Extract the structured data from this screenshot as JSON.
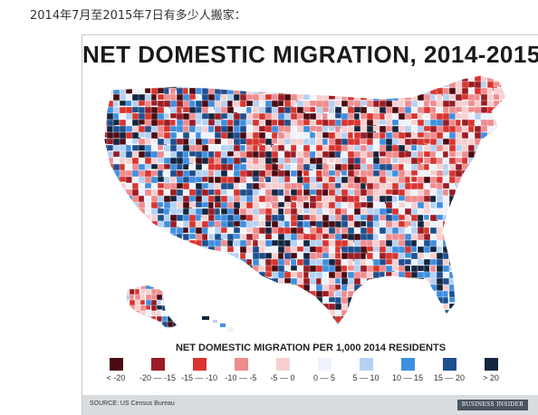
{
  "caption": "2014年7月至2015年7日有多少人搬家：",
  "graphic": {
    "title": "NET DOMESTIC MIGRATION, 2014-2015",
    "legend_title": "NET DOMESTIC MIGRATION PER 1,000 2014 RESIDENTS",
    "legend": [
      {
        "label": "< -20",
        "color": "#4a0b12"
      },
      {
        "label": "-20 — -15",
        "color": "#9b1c24"
      },
      {
        "label": "-15 — -10",
        "color": "#d9342f"
      },
      {
        "label": "-10 — -5",
        "color": "#ef8c8e"
      },
      {
        "label": "-5 — 0",
        "color": "#f7cfd0"
      },
      {
        "label": "0 — 5",
        "color": "#eef3fb"
      },
      {
        "label": "5 — 10",
        "color": "#b4d1f3"
      },
      {
        "label": "10 — 15",
        "color": "#3f8fe0"
      },
      {
        "label": "15 — 20",
        "color": "#1e4f8f"
      },
      {
        "label": "> 20",
        "color": "#14253e"
      }
    ],
    "source": "SOURCE: US Census Bureau",
    "brand": "BUSINESS INSIDER"
  }
}
